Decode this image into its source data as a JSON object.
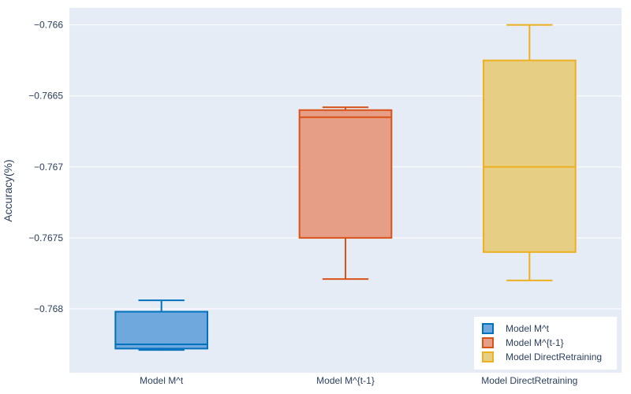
{
  "chart_data": {
    "type": "box",
    "title": "",
    "xlabel": "",
    "ylabel": "Accuracy(%)",
    "ylim": [
      -0.76845,
      -0.76588
    ],
    "yticks": [
      -0.766,
      -0.7665,
      -0.767,
      -0.7675,
      -0.768
    ],
    "ytick_labels": [
      "−0.766",
      "−0.7665",
      "−0.767",
      "−0.7675",
      "−0.768"
    ],
    "categories": [
      "Model M^t",
      "Model M^{t-1}",
      "Model DirectRetraining"
    ],
    "grid": true,
    "legend_position": "bottom-right",
    "series": [
      {
        "name": "Model M^t",
        "category": "Model M^t",
        "color": "#0072BD",
        "fill": "#6FA8DC",
        "whisker_low": -0.76829,
        "q1": -0.76828,
        "median": -0.76825,
        "q3": -0.76802,
        "whisker_high": -0.76794
      },
      {
        "name": "Model M^{t-1}",
        "category": "Model M^{t-1}",
        "color": "#D95319",
        "fill": "#E69F86",
        "whisker_low": -0.76779,
        "q1": -0.7675,
        "median": -0.76665,
        "q3": -0.7666,
        "whisker_high": -0.76658
      },
      {
        "name": "Model DirectRetraining",
        "category": "Model DirectRetraining",
        "color": "#EDB120",
        "fill": "#E6CE84",
        "whisker_low": -0.7678,
        "q1": -0.7676,
        "median": -0.767,
        "q3": -0.76625,
        "whisker_high": -0.766
      }
    ]
  }
}
